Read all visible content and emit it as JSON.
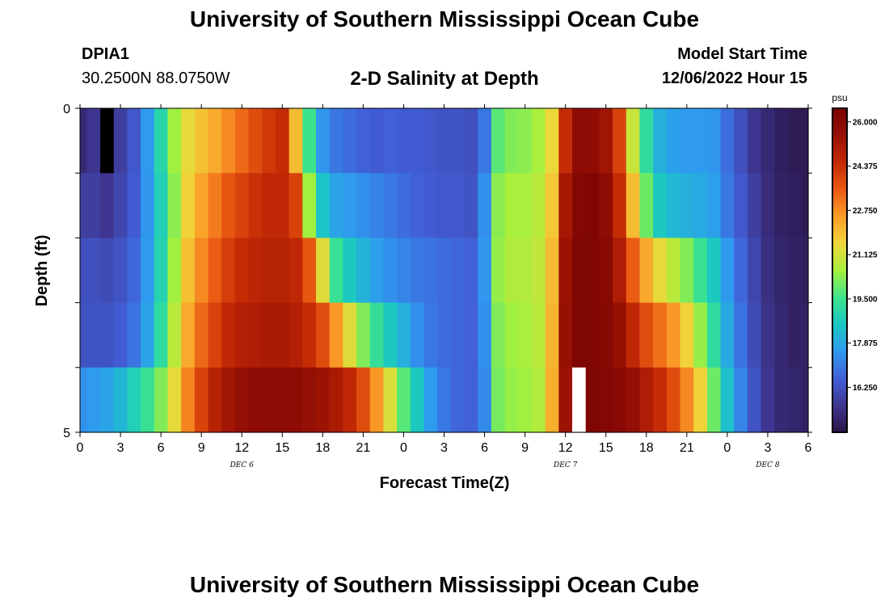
{
  "page": {
    "title": "University of Southern Mississippi Ocean Cube",
    "title_repeat": "University of Southern Mississippi Ocean Cube",
    "station": {
      "id": "DPIA1",
      "coords": "30.2500N  88.0750W"
    },
    "model_start": {
      "label": "Model Start Time",
      "value": "12/06/2022 Hour 15"
    }
  },
  "chart_data": {
    "type": "heatmap",
    "title": "2-D Salinity at Depth",
    "xlabel": "Forecast Time(Z)",
    "ylabel": "Depth (ft)",
    "ylim": [
      0,
      5
    ],
    "y_tick_labels": [
      "0",
      "5"
    ],
    "x_tick_labels": [
      "0",
      "3",
      "6",
      "9",
      "12",
      "15",
      "18",
      "21",
      "0",
      "3",
      "6",
      "9",
      "12",
      "15",
      "18",
      "21",
      "0",
      "3",
      "6"
    ],
    "date_labels": [
      "DEC 6",
      "DEC 7",
      "DEC 8"
    ],
    "x_hours": [
      0,
      1,
      2,
      3,
      4,
      5,
      6,
      7,
      8,
      9,
      10,
      11,
      12,
      13,
      14,
      15,
      16,
      17,
      18,
      19,
      20,
      21,
      22,
      23,
      24,
      25,
      26,
      27,
      28,
      29,
      30,
      31,
      32,
      33,
      34,
      35,
      36,
      37,
      38,
      39,
      40,
      41,
      42,
      43,
      44,
      45,
      46,
      47,
      48,
      49,
      50,
      51,
      52,
      53,
      54
    ],
    "depth_layers": [
      "0-1",
      "1-2",
      "2-3",
      "3-4",
      "4-5"
    ],
    "values": [
      [
        15.2,
        15.6,
        14.6,
        15.8,
        16.4,
        17.6,
        19.0,
        20.5,
        21.4,
        21.9,
        22.3,
        22.8,
        23.3,
        23.8,
        24.2,
        24.5,
        22.0,
        19.5,
        17.5,
        17.0,
        16.8,
        16.6,
        16.5,
        16.6,
        16.5,
        16.5,
        16.4,
        16.3,
        16.3,
        16.2,
        17.0,
        19.8,
        20.2,
        20.3,
        20.6,
        21.5,
        24.5,
        25.8,
        25.8,
        25.3,
        24.0,
        21.0,
        19.2,
        18.0,
        17.7,
        17.6,
        17.6,
        17.5,
        16.8,
        16.2,
        15.6,
        15.2,
        14.9,
        14.8,
        14.8
      ],
      [
        15.8,
        15.8,
        15.6,
        16.0,
        16.5,
        17.5,
        18.8,
        20.3,
        21.6,
        22.4,
        23.0,
        23.6,
        24.0,
        24.4,
        24.6,
        24.6,
        24.0,
        20.5,
        18.5,
        17.8,
        17.6,
        17.4,
        17.2,
        17.0,
        16.8,
        16.6,
        16.5,
        16.4,
        16.4,
        16.3,
        17.4,
        20.3,
        20.6,
        20.6,
        20.8,
        21.8,
        25.2,
        26.2,
        26.3,
        25.8,
        24.5,
        22.0,
        20.0,
        18.6,
        18.2,
        18.0,
        17.9,
        17.7,
        17.0,
        16.4,
        15.8,
        15.3,
        15.0,
        14.9,
        14.8
      ],
      [
        16.2,
        16.2,
        16.1,
        16.3,
        16.7,
        17.6,
        18.9,
        20.5,
        21.9,
        22.8,
        23.5,
        24.1,
        24.5,
        24.7,
        24.8,
        24.8,
        24.6,
        23.6,
        21.3,
        19.4,
        18.6,
        18.1,
        17.7,
        17.4,
        17.2,
        17.0,
        16.9,
        16.8,
        16.7,
        16.6,
        17.5,
        20.4,
        20.7,
        20.7,
        20.9,
        22.0,
        25.4,
        26.3,
        26.3,
        26.0,
        25.0,
        23.5,
        22.3,
        21.4,
        20.8,
        20.2,
        19.4,
        18.6,
        17.6,
        16.7,
        16.0,
        15.4,
        15.1,
        15.0,
        14.9
      ],
      [
        16.3,
        16.3,
        16.3,
        16.5,
        16.9,
        17.8,
        19.2,
        20.8,
        22.3,
        23.3,
        24.0,
        24.6,
        24.9,
        25.0,
        25.1,
        25.1,
        24.9,
        24.5,
        23.8,
        22.6,
        21.3,
        20.2,
        19.3,
        18.6,
        18.0,
        17.4,
        17.0,
        16.8,
        16.7,
        16.6,
        17.4,
        20.2,
        20.5,
        20.6,
        20.8,
        22.1,
        25.5,
        26.3,
        26.3,
        26.1,
        25.5,
        24.6,
        23.8,
        23.2,
        22.6,
        21.6,
        20.4,
        19.2,
        17.9,
        16.9,
        16.1,
        15.5,
        15.2,
        15.0,
        15.0
      ],
      [
        17.4,
        17.6,
        17.8,
        18.2,
        18.8,
        19.4,
        20.2,
        21.4,
        22.9,
        24.0,
        24.8,
        25.3,
        25.6,
        25.8,
        25.9,
        25.9,
        25.8,
        25.6,
        25.4,
        25.1,
        24.6,
        23.8,
        22.6,
        21.2,
        19.8,
        18.6,
        17.6,
        17.0,
        16.7,
        16.6,
        17.3,
        20.1,
        20.4,
        20.5,
        20.7,
        22.2,
        25.4,
        26.3,
        26.3,
        26.2,
        26.0,
        25.6,
        25.0,
        24.5,
        23.8,
        22.8,
        21.6,
        20.0,
        18.4,
        17.2,
        16.3,
        15.6,
        15.2,
        15.1,
        15.0
      ]
    ],
    "missing_cells": [
      {
        "layer": "0-1",
        "hour": 2,
        "color": "#000000"
      },
      {
        "layer": "4-5",
        "hour": 37,
        "color": "#ffffff"
      }
    ],
    "colorbar": {
      "unit": "psu",
      "min": 14.6,
      "max": 26.5,
      "tick_labels": [
        "26.000",
        "24.375",
        "22.750",
        "21.125",
        "19.500",
        "17.875",
        "16.250"
      ],
      "tick_values": [
        26.0,
        24.375,
        22.75,
        21.125,
        19.5,
        17.875,
        16.25
      ],
      "colors": [
        "#2a1548",
        "#3e3690",
        "#4160d8",
        "#2f9af0",
        "#1bc8c3",
        "#3ee58a",
        "#a6f03c",
        "#f0d63a",
        "#fb9c28",
        "#ea5a12",
        "#c42a05",
        "#971004",
        "#7a0403"
      ]
    },
    "grid": false,
    "legend": "right"
  }
}
